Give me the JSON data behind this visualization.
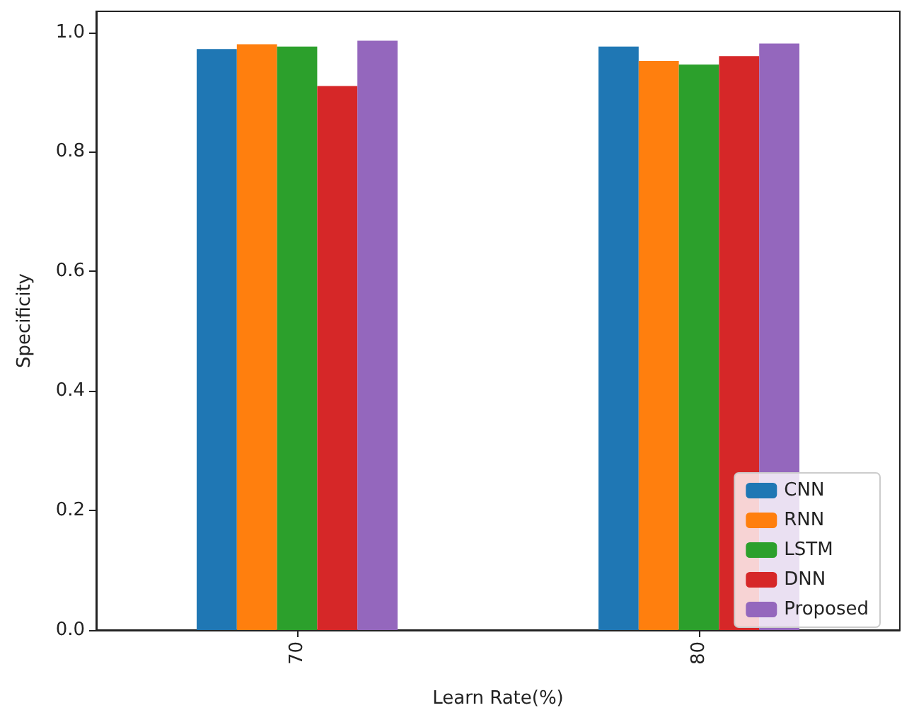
{
  "chart_data": {
    "type": "bar",
    "xlabel": "Learn Rate(%)",
    "ylabel": "Specificity",
    "categories": [
      "70",
      "80"
    ],
    "series": [
      {
        "name": "CNN",
        "color": "#1f77b4",
        "values": [
          0.972,
          0.976
        ]
      },
      {
        "name": "RNN",
        "color": "#ff7f0e",
        "values": [
          0.98,
          0.952
        ]
      },
      {
        "name": "LSTM",
        "color": "#2ca02c",
        "values": [
          0.976,
          0.946
        ]
      },
      {
        "name": "DNN",
        "color": "#d62728",
        "values": [
          0.91,
          0.96
        ]
      },
      {
        "name": "Proposed",
        "color": "#9467bd",
        "values": [
          0.986,
          0.981
        ]
      }
    ],
    "ylim": [
      0,
      1.035
    ],
    "yticks": [
      {
        "value": 0,
        "label": "0.0"
      },
      {
        "value": 0.2,
        "label": "0.2"
      },
      {
        "value": 0.4,
        "label": "0.4"
      },
      {
        "value": 0.6,
        "label": "0.6"
      },
      {
        "value": 0.8,
        "label": "0.8"
      },
      {
        "value": 1,
        "label": "1.0"
      }
    ],
    "grid": false,
    "legend": "bottom right"
  }
}
